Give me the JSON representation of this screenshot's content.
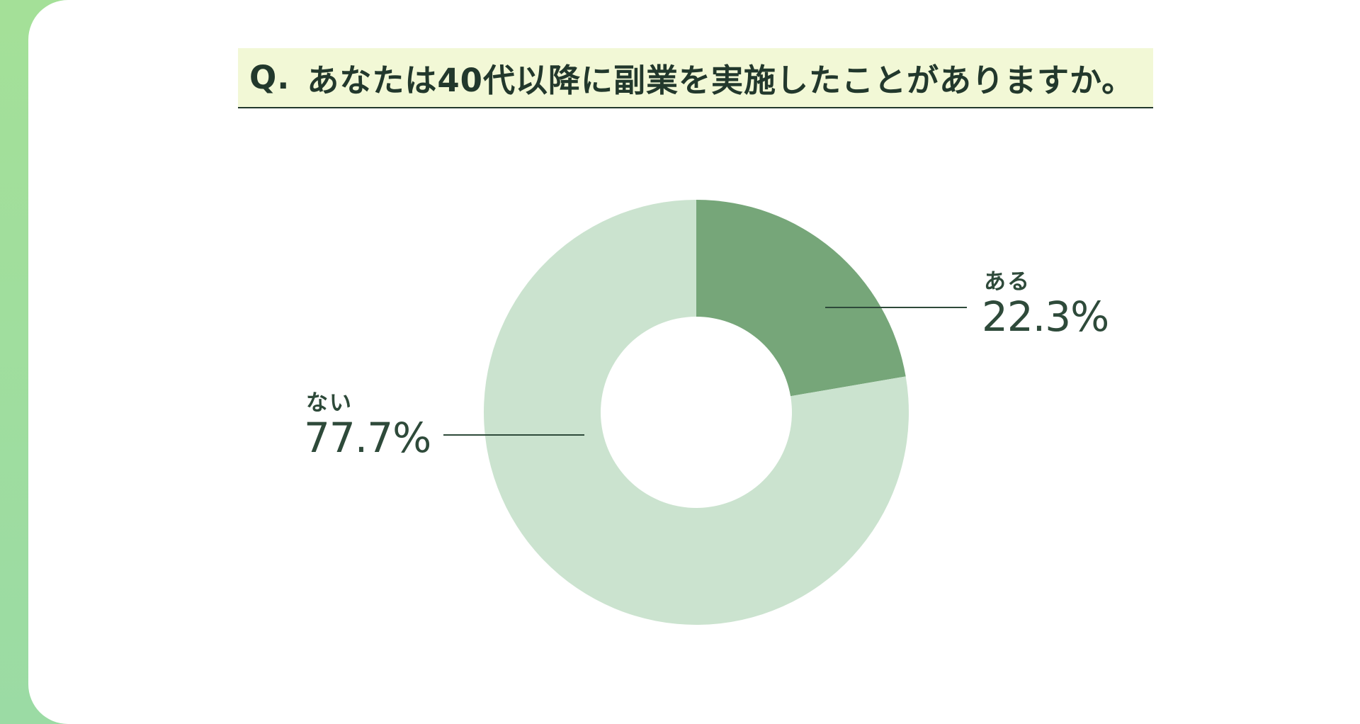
{
  "question": {
    "prefix": "Q.",
    "text": "あなたは40代以降に副業を実施したことがありますか。"
  },
  "colors": {
    "sidebar": "#a2df9a",
    "question_bg": "#f2f8d6",
    "text": "#2e4a3a",
    "slice_yes": "#76a679",
    "slice_no": "#cbe3cf"
  },
  "chart_data": {
    "type": "pie",
    "donut": true,
    "categories": [
      "ある",
      "ない"
    ],
    "values": [
      22.3,
      77.7
    ],
    "data_labels": [
      "22.3%",
      "77.7%"
    ],
    "title": "",
    "legend": "none"
  }
}
